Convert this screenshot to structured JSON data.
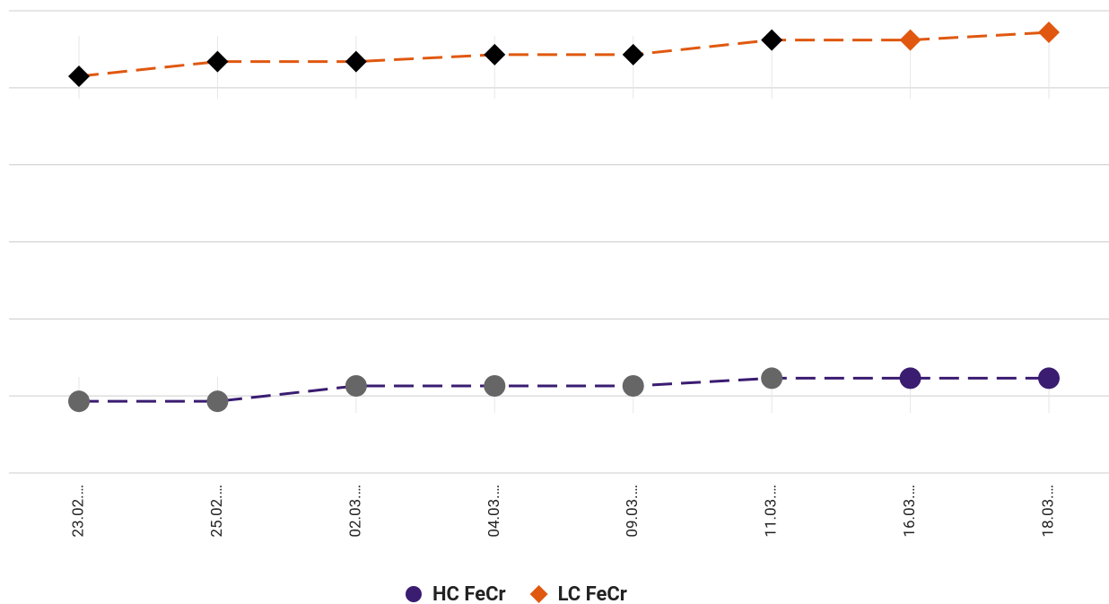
{
  "chart_data": {
    "type": "line",
    "categories": [
      "23.02.…",
      "25.02.…",
      "02.03.…",
      "04.03.…",
      "09.03.…",
      "11.03.…",
      "16.03.…",
      "18.03.…"
    ],
    "series": [
      {
        "name": "HC FeCr",
        "color": "#3a1c71",
        "marker": "circle",
        "marker_colors": [
          "#666666",
          "#666666",
          "#666666",
          "#666666",
          "#666666",
          "#666666",
          "#3a1c71",
          "#3a1c71"
        ],
        "values": [
          0.93,
          0.93,
          1.13,
          1.13,
          1.13,
          1.23,
          1.23,
          1.23
        ]
      },
      {
        "name": "LC FeCr",
        "color": "#e0580f",
        "marker": "diamond",
        "marker_colors": [
          "#000000",
          "#000000",
          "#000000",
          "#000000",
          "#000000",
          "#000000",
          "#e0580f",
          "#e0580f"
        ],
        "values": [
          5.15,
          5.34,
          5.34,
          5.43,
          5.43,
          5.62,
          5.62,
          5.72
        ]
      }
    ],
    "ylim": [
      0,
      6
    ],
    "yticks": [
      0,
      1,
      2,
      3,
      4,
      5,
      6
    ],
    "grid": true,
    "legend": "bottom"
  }
}
